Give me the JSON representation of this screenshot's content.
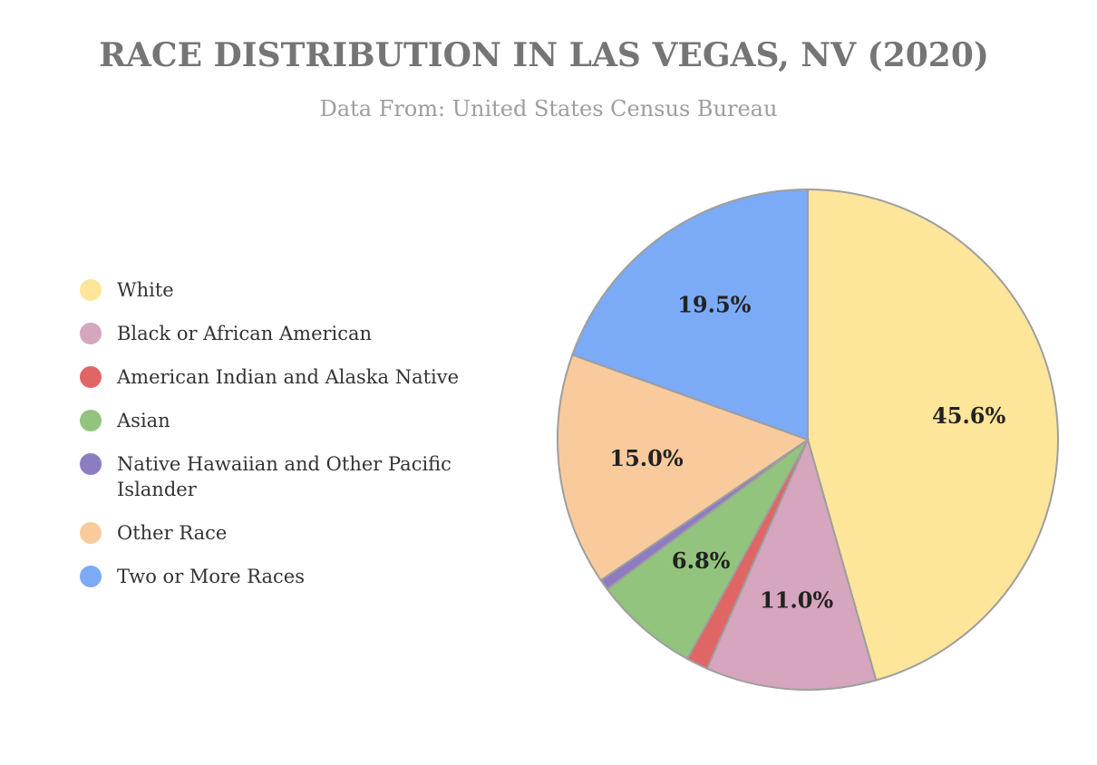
{
  "chart_data": {
    "type": "pie",
    "title": "RACE DISTRIBUTION IN LAS VEGAS, NV (2020)",
    "subtitle": "Data From: United States Census Bureau",
    "legend_position": "left",
    "categories": [
      "White",
      "Black or African American",
      "American Indian and Alaska Native",
      "Asian",
      "Native Hawaiian and Other Pacific Islander",
      "Other Race",
      "Two or More Races"
    ],
    "values": [
      45.6,
      11.0,
      1.4,
      6.8,
      0.7,
      15.0,
      19.5
    ],
    "data_labels": [
      "45.6%",
      "11.0%",
      "",
      "6.8%",
      "",
      "15.0%",
      "19.5%"
    ],
    "colors": [
      "#fde59a",
      "#d5a6bd",
      "#e06666",
      "#93c47d",
      "#8e7cc3",
      "#f9cb9c",
      "#7baaf7"
    ]
  }
}
